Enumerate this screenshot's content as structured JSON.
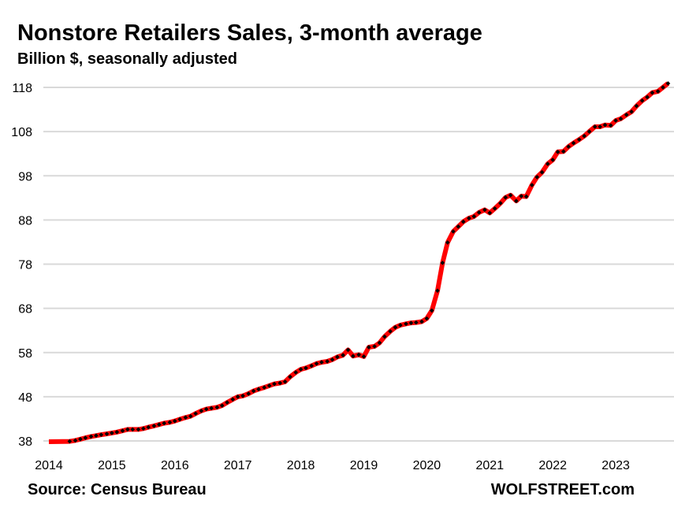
{
  "chart_data": {
    "type": "line",
    "title": "Nonstore Retailers Sales, 3-month average",
    "subtitle": "Billion $, seasonally adjusted",
    "xlabel": "",
    "ylabel": "",
    "xlim": [
      2014,
      2024
    ],
    "ylim": [
      38,
      118
    ],
    "grid": true,
    "x_ticks": [
      "2014",
      "2015",
      "2016",
      "2017",
      "2018",
      "2019",
      "2020",
      "2021",
      "2022",
      "2023"
    ],
    "y_ticks": [
      "38",
      "48",
      "58",
      "68",
      "78",
      "88",
      "98",
      "108",
      "118"
    ],
    "series": [
      {
        "name": "Nonstore Retailers Sales",
        "color": "#ff0000",
        "marker_color": "#000000",
        "points": [
          [
            2014.0,
            37.6
          ],
          [
            2014.33,
            37.9
          ],
          [
            2014.42,
            38.1
          ],
          [
            2014.5,
            38.4
          ],
          [
            2014.58,
            38.7
          ],
          [
            2014.67,
            39.0
          ],
          [
            2014.75,
            39.2
          ],
          [
            2014.83,
            39.4
          ],
          [
            2014.92,
            39.6
          ],
          [
            2015.0,
            39.8
          ],
          [
            2015.08,
            40.0
          ],
          [
            2015.17,
            40.3
          ],
          [
            2015.25,
            40.6
          ],
          [
            2015.33,
            40.6
          ],
          [
            2015.42,
            40.6
          ],
          [
            2015.5,
            40.8
          ],
          [
            2015.58,
            41.1
          ],
          [
            2015.67,
            41.4
          ],
          [
            2015.75,
            41.7
          ],
          [
            2015.83,
            42.0
          ],
          [
            2015.92,
            42.2
          ],
          [
            2016.0,
            42.5
          ],
          [
            2016.08,
            42.9
          ],
          [
            2016.17,
            43.3
          ],
          [
            2016.25,
            43.6
          ],
          [
            2016.33,
            44.2
          ],
          [
            2016.42,
            44.8
          ],
          [
            2016.5,
            45.2
          ],
          [
            2016.58,
            45.4
          ],
          [
            2016.67,
            45.6
          ],
          [
            2016.75,
            46.0
          ],
          [
            2016.83,
            46.7
          ],
          [
            2016.92,
            47.4
          ],
          [
            2017.0,
            48.0
          ],
          [
            2017.08,
            48.2
          ],
          [
            2017.17,
            48.7
          ],
          [
            2017.25,
            49.3
          ],
          [
            2017.33,
            49.7
          ],
          [
            2017.42,
            50.1
          ],
          [
            2017.5,
            50.5
          ],
          [
            2017.58,
            50.9
          ],
          [
            2017.67,
            51.1
          ],
          [
            2017.75,
            51.4
          ],
          [
            2017.83,
            52.5
          ],
          [
            2017.92,
            53.5
          ],
          [
            2018.0,
            54.2
          ],
          [
            2018.08,
            54.5
          ],
          [
            2018.17,
            55.0
          ],
          [
            2018.25,
            55.5
          ],
          [
            2018.33,
            55.8
          ],
          [
            2018.42,
            56.0
          ],
          [
            2018.5,
            56.4
          ],
          [
            2018.58,
            57.0
          ],
          [
            2018.67,
            57.4
          ],
          [
            2018.75,
            58.6
          ],
          [
            2018.83,
            57.2
          ],
          [
            2018.92,
            57.5
          ],
          [
            2019.0,
            57.1
          ],
          [
            2019.08,
            59.2
          ],
          [
            2019.17,
            59.4
          ],
          [
            2019.25,
            60.2
          ],
          [
            2019.33,
            61.6
          ],
          [
            2019.42,
            62.8
          ],
          [
            2019.5,
            63.7
          ],
          [
            2019.58,
            64.2
          ],
          [
            2019.67,
            64.5
          ],
          [
            2019.75,
            64.7
          ],
          [
            2019.83,
            64.8
          ],
          [
            2019.92,
            65.0
          ],
          [
            2020.0,
            65.7
          ],
          [
            2020.08,
            67.5
          ],
          [
            2020.17,
            72.0
          ],
          [
            2020.25,
            78.3
          ],
          [
            2020.33,
            82.9
          ],
          [
            2020.42,
            85.4
          ],
          [
            2020.5,
            86.5
          ],
          [
            2020.58,
            87.6
          ],
          [
            2020.67,
            88.4
          ],
          [
            2020.75,
            88.8
          ],
          [
            2020.83,
            89.7
          ],
          [
            2020.92,
            90.3
          ],
          [
            2021.0,
            89.6
          ],
          [
            2021.08,
            90.6
          ],
          [
            2021.17,
            91.8
          ],
          [
            2021.25,
            93.1
          ],
          [
            2021.33,
            93.6
          ],
          [
            2021.42,
            92.3
          ],
          [
            2021.5,
            93.4
          ],
          [
            2021.58,
            93.3
          ],
          [
            2021.67,
            95.9
          ],
          [
            2021.75,
            97.7
          ],
          [
            2021.83,
            98.8
          ],
          [
            2021.92,
            100.7
          ],
          [
            2022.0,
            101.6
          ],
          [
            2022.08,
            103.4
          ],
          [
            2022.17,
            103.5
          ],
          [
            2022.25,
            104.6
          ],
          [
            2022.33,
            105.4
          ],
          [
            2022.42,
            106.2
          ],
          [
            2022.5,
            107.0
          ],
          [
            2022.58,
            108.0
          ],
          [
            2022.67,
            109.1
          ],
          [
            2022.75,
            109.1
          ],
          [
            2022.83,
            109.5
          ],
          [
            2022.92,
            109.4
          ],
          [
            2023.0,
            110.5
          ],
          [
            2023.08,
            110.9
          ],
          [
            2023.17,
            111.8
          ],
          [
            2023.25,
            112.5
          ],
          [
            2023.33,
            113.8
          ],
          [
            2023.42,
            115.0
          ],
          [
            2023.5,
            115.8
          ],
          [
            2023.58,
            116.8
          ],
          [
            2023.67,
            117.1
          ],
          [
            2023.75,
            118.0
          ],
          [
            2023.83,
            118.9
          ]
        ]
      }
    ],
    "source": "Source: Census Bureau",
    "watermark": "WOLFSTREET.com"
  }
}
